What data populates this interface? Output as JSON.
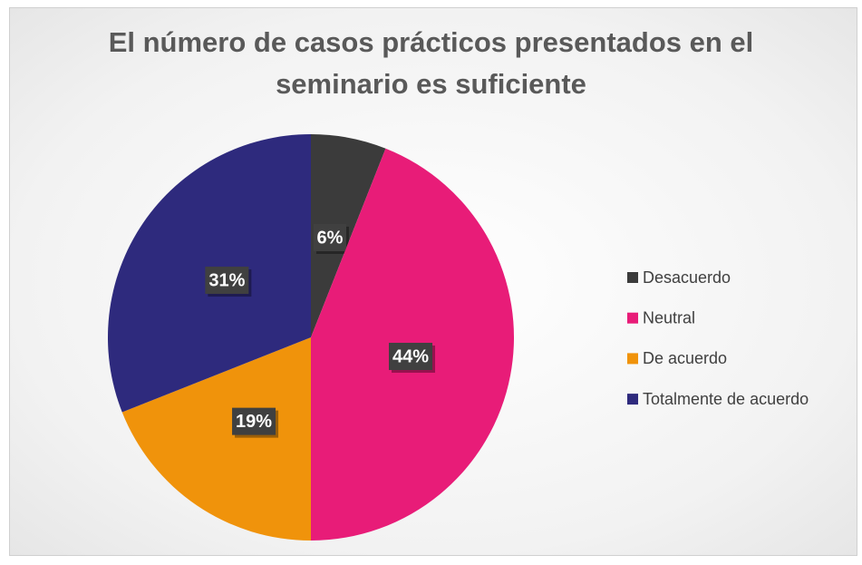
{
  "chart_data": {
    "type": "pie",
    "title": "El número de casos prácticos presentados en el seminario es suficiente",
    "categories": [
      "Desacuerdo",
      "Neutral",
      "De acuerdo",
      "Totalmente de acuerdo"
    ],
    "values": [
      6,
      44,
      19,
      31
    ],
    "value_labels": [
      "6%",
      "44%",
      "19%",
      "31%"
    ],
    "colors": [
      "#3b3b3b",
      "#e81c78",
      "#f0930b",
      "#2e2a7d"
    ],
    "legend": "right"
  }
}
